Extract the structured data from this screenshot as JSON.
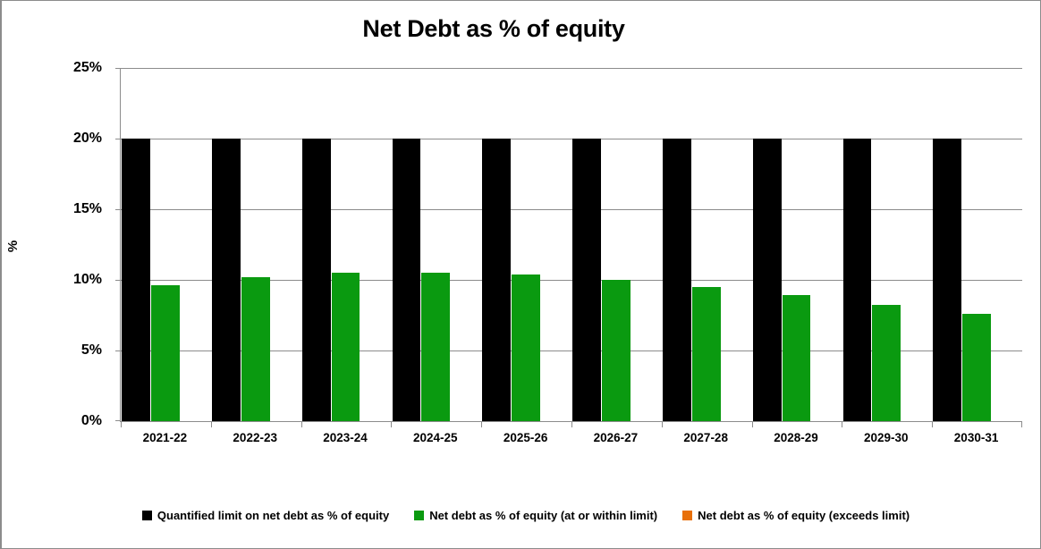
{
  "window": {
    "background_color": "#ffffff",
    "frame_border_color": "#8c8c8c"
  },
  "chart_data": {
    "type": "bar",
    "title": "Net Debt as % of equity",
    "ylabel": "%",
    "xlabel": "",
    "categories": [
      "2021-22",
      "2022-23",
      "2023-24",
      "2024-25",
      "2025-26",
      "2026-27",
      "2027-28",
      "2028-29",
      "2029-30",
      "2030-31"
    ],
    "series": [
      {
        "name": "Quantified limit on net debt as % of equity",
        "color": "#000000",
        "values": [
          20,
          20,
          20,
          20,
          20,
          20,
          20,
          20,
          20,
          20
        ]
      },
      {
        "name": "Net debt as % of equity (at or within limit)",
        "color": "#0a9a10",
        "values": [
          9.6,
          10.2,
          10.5,
          10.5,
          10.4,
          10.0,
          9.5,
          8.9,
          8.2,
          7.6
        ]
      },
      {
        "name": "Net debt as % of equity (exceeds limit)",
        "color": "#e8700a",
        "values": [
          0,
          0,
          0,
          0,
          0,
          0,
          0,
          0,
          0,
          0
        ]
      }
    ],
    "ylim": [
      0,
      25
    ],
    "ytick_step": 5,
    "ytick_labels": [
      "0%",
      "5%",
      "10%",
      "15%",
      "20%",
      "25%"
    ],
    "grid": true,
    "gridline_color": "#8c8c8c",
    "axis_color": "#8c8c8c",
    "legend_position": "bottom"
  }
}
